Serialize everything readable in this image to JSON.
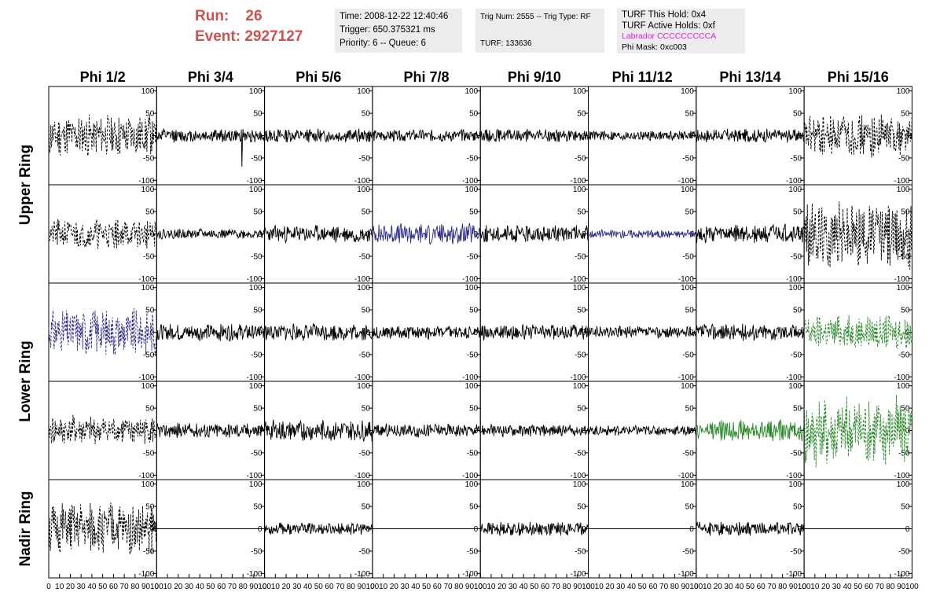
{
  "header": {
    "run_label": "Run:",
    "run_value": "26",
    "event_label": "Event:",
    "event_value": "2927127",
    "time": "Time: 2008-12-22 12:40:46",
    "trigger": "Trigger: 650.375321 ms",
    "priority": "Priority: 6 -- Queue: 6",
    "trig_num": "Trig Num: 2555 -- Trig Type: RF",
    "turf": "TURF: 133636",
    "turf_this_hold": "TURF This Hold: 0x4",
    "turf_active_holds": "TURF Active Holds: 0xf",
    "labrador": "Labrador CCCCCCCCCA",
    "phi_mask": "Phi Mask: 0xc003"
  },
  "colors": {
    "run_text": "#d05050",
    "magenta": "#e020e0",
    "black": "#000000",
    "blue": "#2a2a8a",
    "green": "#2a8a2a"
  },
  "chart_data": {
    "type": "line",
    "columns": [
      "Phi 1/2",
      "Phi 3/4",
      "Phi 5/6",
      "Phi 7/8",
      "Phi 9/10",
      "Phi 11/12",
      "Phi 13/14",
      "Phi 15/16"
    ],
    "row_groups": [
      {
        "label": "Upper Ring",
        "rows": [
          0,
          1
        ]
      },
      {
        "label": "Lower Ring",
        "rows": [
          2,
          3
        ]
      },
      {
        "label": "Nadir Ring",
        "rows": [
          4
        ]
      }
    ],
    "ylim": [
      -110,
      110
    ],
    "xlim": [
      0,
      100
    ],
    "yticks": [
      100,
      50,
      0,
      -50,
      -100
    ],
    "xticks": [
      0,
      10,
      20,
      30,
      40,
      50,
      60,
      70,
      80,
      90,
      100
    ],
    "xtick_labels": [
      "0",
      "10",
      "20",
      "30",
      "40",
      "50",
      "60",
      "70",
      "80",
      "90",
      "100"
    ],
    "panels": [
      {
        "row": 0,
        "col": 0,
        "amp": 50,
        "style": "dashed",
        "color": "black",
        "seed": 11
      },
      {
        "row": 0,
        "col": 1,
        "amp": 16,
        "style": "solid",
        "color": "black",
        "seed": 12,
        "spike_x": 79,
        "spike_y": -70
      },
      {
        "row": 0,
        "col": 2,
        "amp": 16,
        "style": "solid",
        "color": "black",
        "seed": 13
      },
      {
        "row": 0,
        "col": 3,
        "amp": 14,
        "style": "solid",
        "color": "black",
        "seed": 14
      },
      {
        "row": 0,
        "col": 4,
        "amp": 15,
        "style": "solid",
        "color": "black",
        "seed": 15
      },
      {
        "row": 0,
        "col": 5,
        "amp": 12,
        "style": "solid",
        "color": "black",
        "seed": 16
      },
      {
        "row": 0,
        "col": 6,
        "amp": 16,
        "style": "solid",
        "color": "black",
        "seed": 17
      },
      {
        "row": 0,
        "col": 7,
        "amp": 50,
        "style": "dashed",
        "color": "black",
        "seed": 18
      },
      {
        "row": 1,
        "col": 0,
        "amp": 35,
        "style": "dashed",
        "color": "black",
        "seed": 21
      },
      {
        "row": 1,
        "col": 1,
        "amp": 12,
        "style": "solid",
        "color": "black",
        "seed": 22
      },
      {
        "row": 1,
        "col": 2,
        "amp": 20,
        "style": "solid",
        "color": "black",
        "seed": 23
      },
      {
        "row": 1,
        "col": 3,
        "amp": 25,
        "style": "solid",
        "color": "blue",
        "seed": 24
      },
      {
        "row": 1,
        "col": 4,
        "amp": 20,
        "style": "solid",
        "color": "black",
        "seed": 25
      },
      {
        "row": 1,
        "col": 5,
        "amp": 10,
        "style": "solid",
        "color": "blue",
        "seed": 26
      },
      {
        "row": 1,
        "col": 6,
        "amp": 22,
        "style": "solid",
        "color": "black",
        "seed": 27
      },
      {
        "row": 1,
        "col": 7,
        "amp": 80,
        "style": "dashed",
        "color": "black",
        "seed": 28
      },
      {
        "row": 2,
        "col": 0,
        "amp": 55,
        "style": "dashed",
        "color": "blue",
        "seed": 31
      },
      {
        "row": 2,
        "col": 1,
        "amp": 20,
        "style": "solid",
        "color": "black",
        "seed": 32
      },
      {
        "row": 2,
        "col": 2,
        "amp": 20,
        "style": "solid",
        "color": "black",
        "seed": 33
      },
      {
        "row": 2,
        "col": 3,
        "amp": 16,
        "style": "solid",
        "color": "black",
        "seed": 34
      },
      {
        "row": 2,
        "col": 4,
        "amp": 18,
        "style": "solid",
        "color": "black",
        "seed": 35
      },
      {
        "row": 2,
        "col": 5,
        "amp": 14,
        "style": "solid",
        "color": "black",
        "seed": 36
      },
      {
        "row": 2,
        "col": 6,
        "amp": 20,
        "style": "solid",
        "color": "black",
        "seed": 37
      },
      {
        "row": 2,
        "col": 7,
        "amp": 40,
        "style": "dashed",
        "color": "green",
        "seed": 38
      },
      {
        "row": 3,
        "col": 0,
        "amp": 35,
        "style": "dashed",
        "color": "black",
        "seed": 41
      },
      {
        "row": 3,
        "col": 1,
        "amp": 18,
        "style": "solid",
        "color": "black",
        "seed": 42
      },
      {
        "row": 3,
        "col": 2,
        "amp": 25,
        "style": "solid",
        "color": "black",
        "seed": 43
      },
      {
        "row": 3,
        "col": 3,
        "amp": 16,
        "style": "solid",
        "color": "black",
        "seed": 44
      },
      {
        "row": 3,
        "col": 4,
        "amp": 14,
        "style": "solid",
        "color": "black",
        "seed": 45
      },
      {
        "row": 3,
        "col": 5,
        "amp": 12,
        "style": "solid",
        "color": "black",
        "seed": 46
      },
      {
        "row": 3,
        "col": 6,
        "amp": 25,
        "style": "solid",
        "color": "green",
        "seed": 47
      },
      {
        "row": 3,
        "col": 7,
        "amp": 85,
        "style": "dashed",
        "color": "green",
        "seed": 48
      },
      {
        "row": 4,
        "col": 0,
        "amp": 60,
        "style": "dashed",
        "color": "black",
        "seed": 51
      },
      {
        "row": 4,
        "col": 1,
        "amp": 0,
        "style": "solid",
        "color": "black",
        "seed": 52
      },
      {
        "row": 4,
        "col": 2,
        "amp": 14,
        "style": "solid",
        "color": "black",
        "seed": 53
      },
      {
        "row": 4,
        "col": 3,
        "amp": 0,
        "style": "solid",
        "color": "black",
        "seed": 54
      },
      {
        "row": 4,
        "col": 4,
        "amp": 16,
        "style": "solid",
        "color": "black",
        "seed": 55
      },
      {
        "row": 4,
        "col": 5,
        "amp": 0,
        "style": "solid",
        "color": "black",
        "seed": 56
      },
      {
        "row": 4,
        "col": 6,
        "amp": 16,
        "style": "solid",
        "color": "black",
        "seed": 57
      },
      {
        "row": 4,
        "col": 7,
        "amp": 0,
        "style": "solid",
        "color": "black",
        "seed": 58
      }
    ]
  }
}
